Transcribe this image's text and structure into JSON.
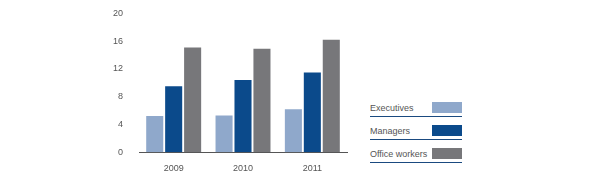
{
  "chart_data": {
    "type": "bar",
    "categories": [
      "2009",
      "2010",
      "2011"
    ],
    "series": [
      {
        "name": "Executives",
        "color": "#8fa8cb",
        "values": [
          5.2,
          5.3,
          6.2
        ]
      },
      {
        "name": "Managers",
        "color": "#0b4a8b",
        "values": [
          9.5,
          10.4,
          11.5
        ]
      },
      {
        "name": "Office workers",
        "color": "#77777a",
        "values": [
          15.1,
          14.9,
          16.2
        ]
      }
    ],
    "ylim": [
      0,
      20
    ],
    "yticks": [
      0,
      4,
      8,
      12,
      16,
      20
    ],
    "grid": false,
    "legend": "right"
  }
}
